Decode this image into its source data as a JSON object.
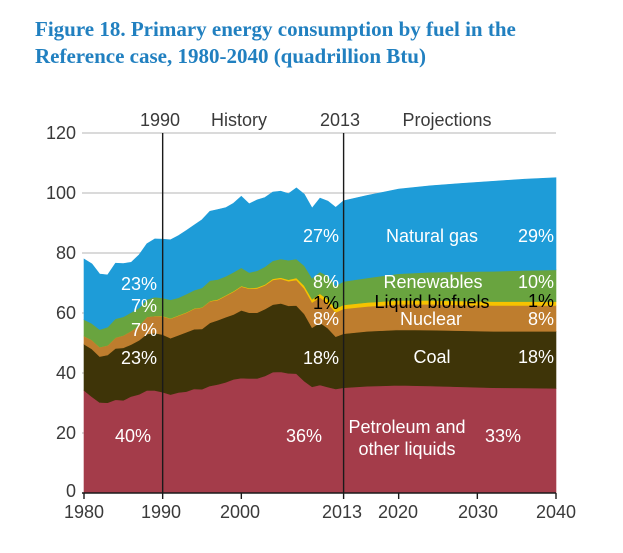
{
  "title": "Figure 18. Primary energy consumption by fuel in the Reference case, 1980-2040 (quadrillion Btu)",
  "header": {
    "labels": [
      "1990",
      "History",
      "2013",
      "Projections"
    ]
  },
  "axes": {
    "y_ticks": [
      "120",
      "100",
      "80",
      "60",
      "40",
      "20",
      "0"
    ],
    "x_ticks": [
      "1980",
      "1990",
      "2000",
      "2013",
      "2020",
      "2030",
      "2040"
    ]
  },
  "colors": {
    "title": "#2180C0",
    "text": "#3a3a3a",
    "axis": "#1a1a1a",
    "gridline": "#c4c4c4",
    "label_light": "#ffffff",
    "label_dark": "#000000",
    "petroleum": "#A43C4A",
    "coal": "#3E3408",
    "nuclear": "#BE7D2E",
    "liquid_biofuels": "#F6C300",
    "renewables": "#69A43F",
    "natural_gas": "#1E9CD8"
  },
  "chart_data": {
    "type": "area",
    "stacked": true,
    "title": "Figure 18. Primary energy consumption by fuel in the Reference case, 1980-2040 (quadrillion Btu)",
    "xlabel": "",
    "ylabel": "quadrillion Btu",
    "xlim": [
      1980,
      2040
    ],
    "ylim": [
      0,
      120
    ],
    "grid": "horizontal",
    "legend_position": "in-plot band labels",
    "history_end_year": 2013,
    "vertical_markers": [
      1990,
      2013
    ],
    "x_tick_years": [
      1980,
      1990,
      2000,
      2013,
      2020,
      2030,
      2040
    ],
    "gridlines": [
      20,
      40,
      60,
      80,
      100,
      120
    ],
    "x": [
      1980,
      1981,
      1982,
      1983,
      1984,
      1985,
      1986,
      1987,
      1988,
      1989,
      1990,
      1991,
      1992,
      1993,
      1994,
      1995,
      1996,
      1997,
      1998,
      1999,
      2000,
      2001,
      2002,
      2003,
      2004,
      2005,
      2006,
      2007,
      2008,
      2009,
      2010,
      2011,
      2012,
      2013,
      2016,
      2020,
      2024,
      2028,
      2032,
      2036,
      2040
    ],
    "series": [
      {
        "name": "Petroleum and other liquids",
        "color": "#A43C4A",
        "values": [
          34.2,
          32.1,
          30.2,
          30.1,
          31.1,
          30.9,
          32.2,
          32.9,
          34.2,
          34.2,
          33.6,
          32.8,
          33.5,
          33.8,
          34.7,
          34.6,
          35.7,
          36.2,
          36.9,
          37.9,
          38.3,
          38.2,
          38.2,
          39.0,
          40.3,
          40.4,
          39.9,
          39.8,
          37.3,
          35.4,
          36.0,
          35.3,
          34.7,
          35.1,
          35.6,
          35.9,
          35.7,
          35.4,
          35.1,
          35.0,
          34.9
        ]
      },
      {
        "name": "Coal",
        "color": "#3E3408",
        "values": [
          15.4,
          15.9,
          15.3,
          15.9,
          17.1,
          17.5,
          17.3,
          18.0,
          18.8,
          19.1,
          19.2,
          18.8,
          19.1,
          19.8,
          19.9,
          20.1,
          21.0,
          21.4,
          21.7,
          21.6,
          22.6,
          21.9,
          21.9,
          22.3,
          22.5,
          22.8,
          22.5,
          22.7,
          22.4,
          19.7,
          20.8,
          19.6,
          17.4,
          18.0,
          18.3,
          18.5,
          18.6,
          18.7,
          18.8,
          18.9,
          19.0
        ]
      },
      {
        "name": "Nuclear",
        "color": "#BE7D2E",
        "values": [
          2.7,
          3.0,
          3.1,
          3.2,
          3.6,
          4.1,
          4.5,
          4.9,
          5.7,
          5.7,
          6.1,
          6.5,
          6.5,
          6.5,
          6.8,
          7.1,
          7.2,
          6.7,
          7.1,
          7.6,
          7.9,
          8.0,
          8.1,
          7.9,
          8.2,
          8.2,
          8.2,
          8.5,
          8.4,
          8.4,
          8.4,
          8.3,
          8.1,
          8.3,
          8.3,
          8.5,
          8.6,
          8.6,
          8.6,
          8.6,
          8.6
        ]
      },
      {
        "name": "Liquid biofuels",
        "color": "#F6C300",
        "values": [
          0.0,
          0.0,
          0.0,
          0.0,
          0.0,
          0.0,
          0.0,
          0.0,
          0.0,
          0.0,
          0.1,
          0.1,
          0.1,
          0.1,
          0.1,
          0.1,
          0.1,
          0.2,
          0.2,
          0.2,
          0.2,
          0.2,
          0.3,
          0.3,
          0.4,
          0.4,
          0.5,
          0.7,
          1.0,
          1.1,
          1.2,
          1.3,
          1.3,
          1.3,
          1.3,
          1.3,
          1.3,
          1.3,
          1.3,
          1.3,
          1.3
        ]
      },
      {
        "name": "Renewables",
        "color": "#69A43F",
        "values": [
          5.5,
          5.5,
          5.9,
          6.1,
          6.3,
          6.2,
          6.2,
          5.9,
          5.8,
          6.3,
          6.0,
          6.2,
          5.9,
          6.1,
          6.1,
          6.5,
          6.8,
          6.7,
          6.3,
          6.3,
          6.1,
          5.2,
          5.6,
          5.9,
          6.0,
          6.2,
          6.5,
          6.3,
          6.7,
          7.0,
          7.3,
          7.8,
          7.6,
          7.8,
          8.2,
          8.9,
          9.4,
          9.8,
          10.1,
          10.4,
          10.6
        ]
      },
      {
        "name": "Natural gas",
        "color": "#1E9CD8",
        "values": [
          20.2,
          19.9,
          18.5,
          17.4,
          18.5,
          17.8,
          16.7,
          17.7,
          18.6,
          19.4,
          19.6,
          20.0,
          20.7,
          21.2,
          21.7,
          22.7,
          23.1,
          23.3,
          22.9,
          23.0,
          23.8,
          22.9,
          23.6,
          23.1,
          22.9,
          22.6,
          22.2,
          23.7,
          23.8,
          23.4,
          24.6,
          25.0,
          26.1,
          26.9,
          27.5,
          28.2,
          28.8,
          29.4,
          30.0,
          30.4,
          30.7
        ]
      }
    ],
    "share_labels": {
      "y1990": {
        "natural_gas": "23%",
        "renewables": "7%",
        "nuclear": "7%",
        "coal": "23%",
        "petroleum": "40%"
      },
      "y2013": {
        "natural_gas": "27%",
        "renewables": "8%",
        "liquid_biofuels": "1%",
        "nuclear": "8%",
        "coal": "18%",
        "petroleum": "36%"
      },
      "y2040": {
        "natural_gas": "29%",
        "renewables": "10%",
        "liquid_biofuels": "1%",
        "nuclear": "8%",
        "coal": "18%",
        "petroleum": "33%"
      }
    }
  }
}
